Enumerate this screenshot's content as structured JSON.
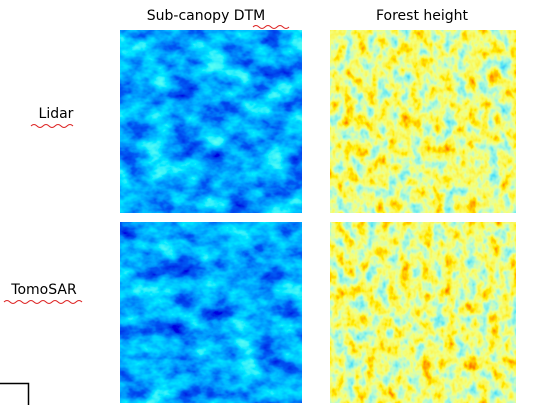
{
  "columns": [
    "Sub-canopy DTM",
    "Forest height"
  ],
  "rows": [
    "Lidar",
    "TomoSAR"
  ]
}
